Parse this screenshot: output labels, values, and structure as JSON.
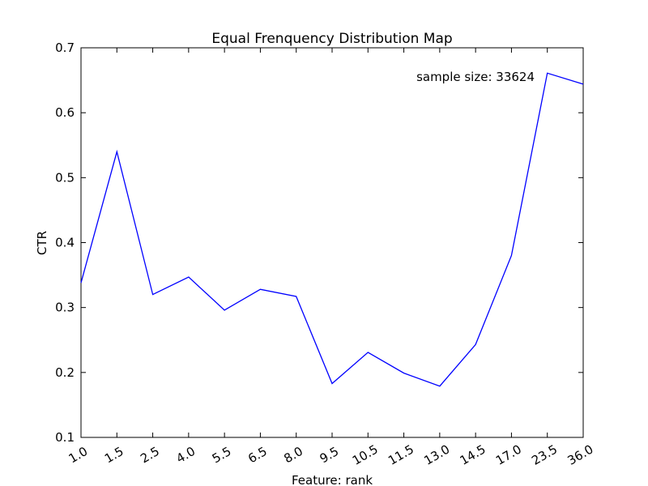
{
  "chart_data": {
    "type": "line",
    "title": "Equal Frenquency Distribution Map",
    "xlabel": "Feature: rank",
    "ylabel": "CTR",
    "annotation": "sample size: 33624",
    "categories": [
      "1.0",
      "1.5",
      "2.5",
      "4.0",
      "5.5",
      "6.5",
      "8.0",
      "9.5",
      "10.5",
      "11.5",
      "13.0",
      "14.5",
      "17.0",
      "23.5",
      "36.0"
    ],
    "yticks": [
      "0.1",
      "0.2",
      "0.3",
      "0.4",
      "0.5",
      "0.6",
      "0.7"
    ],
    "ylim": [
      0.1,
      0.7
    ],
    "grid": false,
    "line_color": "#0000ff",
    "series": [
      {
        "values": [
          0.338,
          0.54,
          0.32,
          0.347,
          0.296,
          0.328,
          0.317,
          0.183,
          0.231,
          0.199,
          0.179,
          0.243,
          0.38,
          0.661,
          0.644
        ]
      }
    ]
  }
}
